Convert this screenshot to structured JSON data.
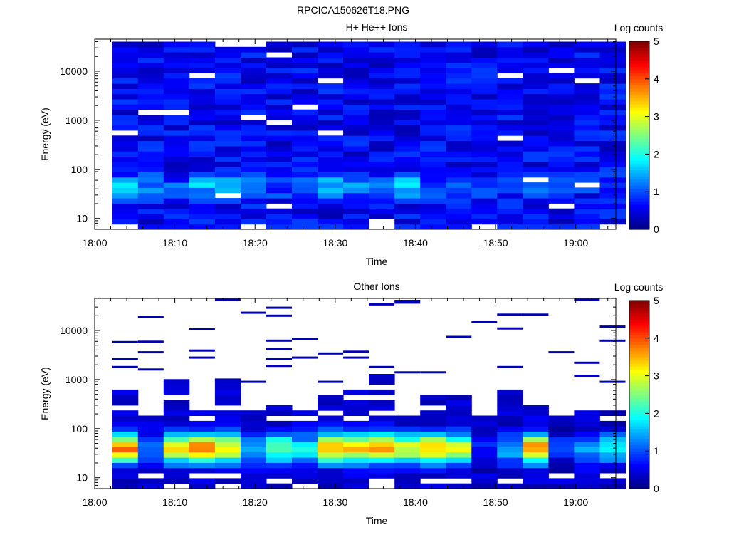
{
  "figure_title": "RPCICA150626T18.PNG",
  "chart_data": [
    {
      "type": "heatmap",
      "title": "H+ He++ Ions",
      "xlabel": "Time",
      "ylabel": "Energy (eV)",
      "colorbar_label": "Log counts",
      "x_ticks": [
        "18:00",
        "18:10",
        "18:20",
        "18:30",
        "18:40",
        "18:50",
        "19:00"
      ],
      "x_range_minutes": [
        0,
        65
      ],
      "y_ticks": [
        "10",
        "100",
        "1000",
        "10000"
      ],
      "y_scale": "log",
      "y_range_eV": [
        6,
        45000
      ],
      "colorbar_ticks": [
        "0",
        "1",
        "2",
        "3",
        "4",
        "5"
      ],
      "color_range": [
        0,
        5
      ],
      "time_columns_minutes": [
        2.2,
        5.4,
        8.6,
        11.8,
        15.0,
        18.2,
        21.4,
        24.6,
        27.8,
        31.0,
        34.2,
        37.4,
        40.6,
        43.8,
        47.0,
        50.2,
        53.4,
        56.6,
        59.8,
        63.0
      ],
      "column_width_minutes": 3.2,
      "energy_rows": 36,
      "profile": {
        "low_energy_peak_eV": 45,
        "low_energy_peak_log_counts": [
          1.8,
          1.3,
          1.0,
          1.5,
          1.6,
          1.2,
          1.0,
          1.0,
          1.6,
          1.5,
          1.4,
          1.8,
          1.1,
          1.0,
          0.9,
          0.8,
          1.0,
          1.1,
          0.8,
          0.9
        ],
        "background_log_counts": 0.6,
        "gaps_white": [
          [
            3,
            2
          ],
          [
            11,
            20
          ],
          [
            11,
            36
          ],
          [
            2,
            26
          ],
          [
            13,
            30
          ],
          [
            15,
            8
          ],
          [
            16,
            3
          ],
          [
            14,
            23
          ],
          [
            17,
            6
          ],
          [
            19,
            5
          ],
          [
            8,
            13
          ]
        ]
      }
    },
    {
      "type": "heatmap",
      "title": "Other Ions",
      "xlabel": "Time",
      "ylabel": "Energy (eV)",
      "colorbar_label": "Log counts",
      "x_ticks": [
        "18:00",
        "18:10",
        "18:20",
        "18:30",
        "18:40",
        "18:50",
        "19:00"
      ],
      "x_range_minutes": [
        0,
        65
      ],
      "y_ticks": [
        "10",
        "100",
        "1000",
        "10000"
      ],
      "y_scale": "log",
      "y_range_eV": [
        6,
        45000
      ],
      "colorbar_ticks": [
        "0",
        "1",
        "2",
        "3",
        "4",
        "5"
      ],
      "color_range": [
        0,
        5
      ],
      "time_columns_minutes": [
        2.2,
        5.4,
        8.6,
        11.8,
        15.0,
        18.2,
        21.4,
        24.6,
        27.8,
        31.0,
        34.2,
        37.4,
        40.6,
        43.8,
        47.0,
        50.2,
        53.4,
        56.6,
        59.8,
        63.0
      ],
      "column_width_minutes": 3.2,
      "energy_rows": 36,
      "profile": {
        "peak_energy_eV": 40,
        "peak_log_counts": [
          3.8,
          1.3,
          3.1,
          3.7,
          3.2,
          1.5,
          2.4,
          1.8,
          3.4,
          3.3,
          3.5,
          3.0,
          3.4,
          2.9,
          0.7,
          1.5,
          3.7,
          0.8,
          1.4,
          1.8
        ],
        "spectrum_top_eV": [
          700,
          200,
          1000,
          250,
          1000,
          250,
          300,
          700,
          500,
          700,
          1200,
          200,
          500,
          500,
          200,
          600,
          500,
          250,
          250,
          250
        ],
        "sparse_high_energy_streaks": [
          [
            0,
            1800
          ],
          [
            0,
            2600
          ],
          [
            0,
            5800
          ],
          [
            1,
            1600
          ],
          [
            1,
            3600
          ],
          [
            1,
            5900
          ],
          [
            1,
            19000
          ],
          [
            3,
            2800
          ],
          [
            3,
            3900
          ],
          [
            3,
            10500
          ],
          [
            4,
            1000
          ],
          [
            4,
            42000
          ],
          [
            5,
            900
          ],
          [
            5,
            23000
          ],
          [
            6,
            1900
          ],
          [
            6,
            2600
          ],
          [
            6,
            4200
          ],
          [
            6,
            6200
          ],
          [
            6,
            20000
          ],
          [
            6,
            29000
          ],
          [
            7,
            2800
          ],
          [
            7,
            6700
          ],
          [
            8,
            900
          ],
          [
            8,
            3400
          ],
          [
            9,
            2800
          ],
          [
            9,
            3700
          ],
          [
            10,
            1800
          ],
          [
            10,
            34000
          ],
          [
            11,
            1400
          ],
          [
            11,
            40000
          ],
          [
            11,
            37000
          ],
          [
            12,
            1400
          ],
          [
            13,
            7400
          ],
          [
            14,
            15000
          ],
          [
            15,
            1800
          ],
          [
            15,
            11000
          ],
          [
            15,
            21000
          ],
          [
            16,
            21000
          ],
          [
            17,
            3600
          ],
          [
            18,
            1200
          ],
          [
            18,
            2200
          ],
          [
            18,
            42000
          ],
          [
            19,
            900
          ],
          [
            19,
            6200
          ],
          [
            19,
            12000
          ]
        ]
      }
    }
  ]
}
